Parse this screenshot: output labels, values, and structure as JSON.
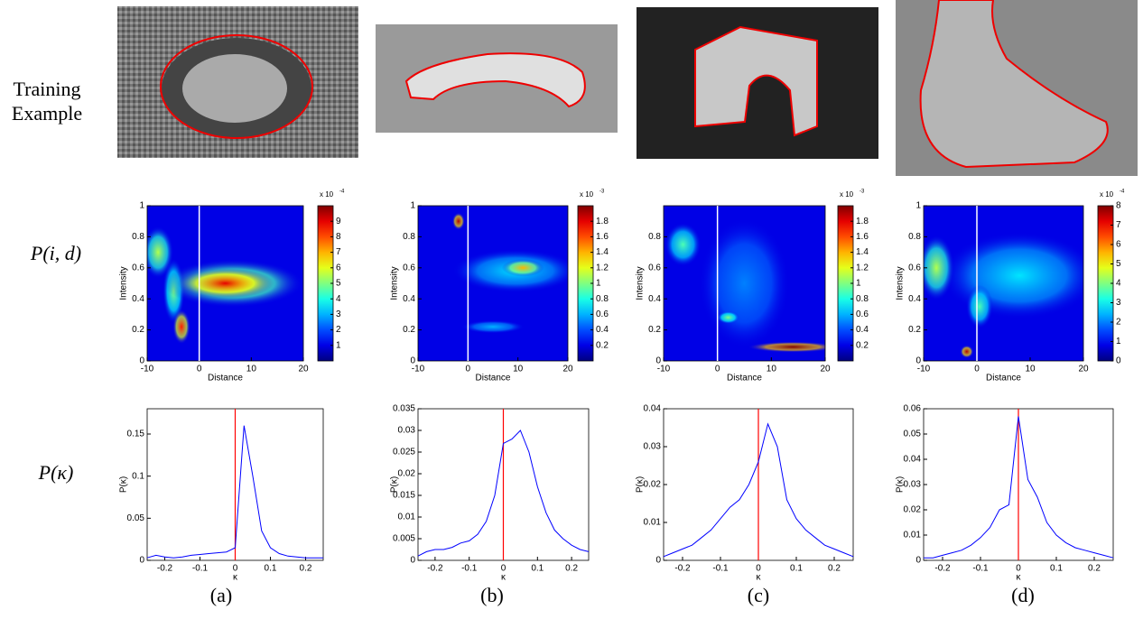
{
  "row_labels": {
    "image": [
      "Training",
      "Example"
    ],
    "intensity": "P(i, d)",
    "curvature": "P(κ)"
  },
  "column_labels": [
    "(a)",
    "(b)",
    "(c)",
    "(d)"
  ],
  "heatmaps": [
    {
      "type": "heatmap",
      "xlabel": "Distance",
      "ylabel": "Intensity",
      "xlim": [
        -10,
        20
      ],
      "xticks": [
        -10,
        0,
        10,
        20
      ],
      "ylim": [
        0,
        1
      ],
      "yticks": [
        0,
        0.2,
        0.4,
        0.6,
        0.8,
        1
      ],
      "marker_x": 0,
      "marker_color": "#ffffff",
      "clim": [
        0,
        10
      ],
      "cticks": [
        1,
        2,
        3,
        4,
        5,
        6,
        7,
        8,
        9
      ],
      "cscale": {
        "base": "x 10",
        "exponent": "-4"
      }
    },
    {
      "type": "heatmap",
      "xlabel": "Distance",
      "ylabel": "Intensity",
      "xlim": [
        -10,
        20
      ],
      "xticks": [
        -10,
        0,
        10,
        20
      ],
      "ylim": [
        0,
        1
      ],
      "yticks": [
        0,
        0.2,
        0.4,
        0.6,
        0.8,
        1
      ],
      "marker_x": 0,
      "marker_color": "#ffffff",
      "clim": [
        0,
        2
      ],
      "cticks": [
        0.2,
        0.4,
        0.6,
        0.8,
        1,
        1.2,
        1.4,
        1.6,
        1.8
      ],
      "cscale": {
        "base": "x 10",
        "exponent": "-3"
      }
    },
    {
      "type": "heatmap",
      "xlabel": "Distance",
      "ylabel": "Intensity",
      "xlim": [
        -10,
        20
      ],
      "xticks": [
        -10,
        0,
        10,
        20
      ],
      "ylim": [
        0,
        1
      ],
      "yticks": [
        0,
        0.2,
        0.4,
        0.6,
        0.8
      ],
      "marker_x": 0,
      "marker_color": "#ffffff",
      "clim": [
        0,
        2
      ],
      "cticks": [
        0.2,
        0.4,
        0.6,
        0.8,
        1,
        1.2,
        1.4,
        1.6,
        1.8
      ],
      "cscale": {
        "base": "x 10",
        "exponent": "-3"
      }
    },
    {
      "type": "heatmap",
      "xlabel": "Distance",
      "ylabel": "Intensity",
      "xlim": [
        -10,
        20
      ],
      "xticks": [
        -10,
        0,
        10,
        20
      ],
      "ylim": [
        0,
        1
      ],
      "yticks": [
        0,
        0.2,
        0.4,
        0.6,
        0.8,
        1
      ],
      "marker_x": 0,
      "marker_color": "#ffffff",
      "clim": [
        0,
        8
      ],
      "cticks": [
        0,
        1,
        2,
        3,
        4,
        5,
        6,
        7,
        8
      ],
      "cscale": {
        "base": "x 10",
        "exponent": "-4"
      }
    }
  ],
  "curves": [
    {
      "type": "line",
      "xlabel": "κ",
      "ylabel": "P(κ)",
      "xlim": [
        -0.25,
        0.25
      ],
      "xticks": [
        -0.2,
        -0.1,
        0,
        0.1,
        0.2
      ],
      "ylim": [
        0,
        0.18
      ],
      "yticks": [
        0,
        0.05,
        0.1,
        0.15
      ],
      "marker_x": 0,
      "marker_color": "#ff0000",
      "color": "#0000ff",
      "x": [
        -0.25,
        -0.225,
        -0.2,
        -0.175,
        -0.15,
        -0.125,
        -0.1,
        -0.075,
        -0.05,
        -0.025,
        0,
        0.025,
        0.05,
        0.075,
        0.1,
        0.125,
        0.15,
        0.175,
        0.2,
        0.225,
        0.25
      ],
      "values": [
        0.003,
        0.006,
        0.004,
        0.003,
        0.004,
        0.006,
        0.007,
        0.008,
        0.009,
        0.01,
        0.015,
        0.16,
        0.1,
        0.035,
        0.015,
        0.008,
        0.005,
        0.004,
        0.003,
        0.003,
        0.003
      ]
    },
    {
      "type": "line",
      "xlabel": "κ",
      "ylabel": "P(κ)",
      "xlim": [
        -0.25,
        0.25
      ],
      "xticks": [
        -0.2,
        -0.1,
        0,
        0.1,
        0.2
      ],
      "ylim": [
        0,
        0.035
      ],
      "yticks": [
        0,
        0.005,
        0.01,
        0.015,
        0.02,
        0.025,
        0.03,
        0.035
      ],
      "marker_x": 0,
      "marker_color": "#ff0000",
      "color": "#0000ff",
      "x": [
        -0.25,
        -0.225,
        -0.2,
        -0.175,
        -0.15,
        -0.125,
        -0.1,
        -0.075,
        -0.05,
        -0.025,
        0,
        0.025,
        0.05,
        0.075,
        0.1,
        0.125,
        0.15,
        0.175,
        0.2,
        0.225,
        0.25
      ],
      "values": [
        0.001,
        0.002,
        0.0025,
        0.0025,
        0.003,
        0.004,
        0.0045,
        0.006,
        0.009,
        0.015,
        0.027,
        0.028,
        0.03,
        0.025,
        0.017,
        0.011,
        0.007,
        0.005,
        0.0035,
        0.0025,
        0.002
      ]
    },
    {
      "type": "line",
      "xlabel": "κ",
      "ylabel": "P(κ)",
      "xlim": [
        -0.25,
        0.25
      ],
      "xticks": [
        -0.2,
        -0.1,
        0,
        0.1,
        0.2
      ],
      "ylim": [
        0,
        0.04
      ],
      "yticks": [
        0,
        0.01,
        0.02,
        0.03,
        0.04
      ],
      "marker_x": 0,
      "marker_color": "#ff0000",
      "color": "#0000ff",
      "x": [
        -0.25,
        -0.225,
        -0.2,
        -0.175,
        -0.15,
        -0.125,
        -0.1,
        -0.075,
        -0.05,
        -0.025,
        0,
        0.025,
        0.05,
        0.075,
        0.1,
        0.125,
        0.15,
        0.175,
        0.2,
        0.225,
        0.25
      ],
      "values": [
        0.001,
        0.002,
        0.003,
        0.004,
        0.006,
        0.008,
        0.011,
        0.014,
        0.016,
        0.02,
        0.026,
        0.036,
        0.03,
        0.016,
        0.011,
        0.008,
        0.006,
        0.004,
        0.003,
        0.002,
        0.001
      ]
    },
    {
      "type": "line",
      "xlabel": "κ",
      "ylabel": "P(κ)",
      "xlim": [
        -0.25,
        0.25
      ],
      "xticks": [
        -0.2,
        -0.1,
        0,
        0.1,
        0.2
      ],
      "ylim": [
        0,
        0.06
      ],
      "yticks": [
        0,
        0.01,
        0.02,
        0.03,
        0.04,
        0.05,
        0.06
      ],
      "marker_x": 0,
      "marker_color": "#ff0000",
      "color": "#0000ff",
      "x": [
        -0.25,
        -0.225,
        -0.2,
        -0.175,
        -0.15,
        -0.125,
        -0.1,
        -0.075,
        -0.05,
        -0.025,
        0,
        0.025,
        0.05,
        0.075,
        0.1,
        0.125,
        0.15,
        0.175,
        0.2,
        0.225,
        0.25
      ],
      "values": [
        0.001,
        0.001,
        0.002,
        0.003,
        0.004,
        0.006,
        0.009,
        0.013,
        0.02,
        0.022,
        0.057,
        0.032,
        0.025,
        0.015,
        0.01,
        0.007,
        0.005,
        0.004,
        0.003,
        0.002,
        0.001
      ]
    }
  ]
}
